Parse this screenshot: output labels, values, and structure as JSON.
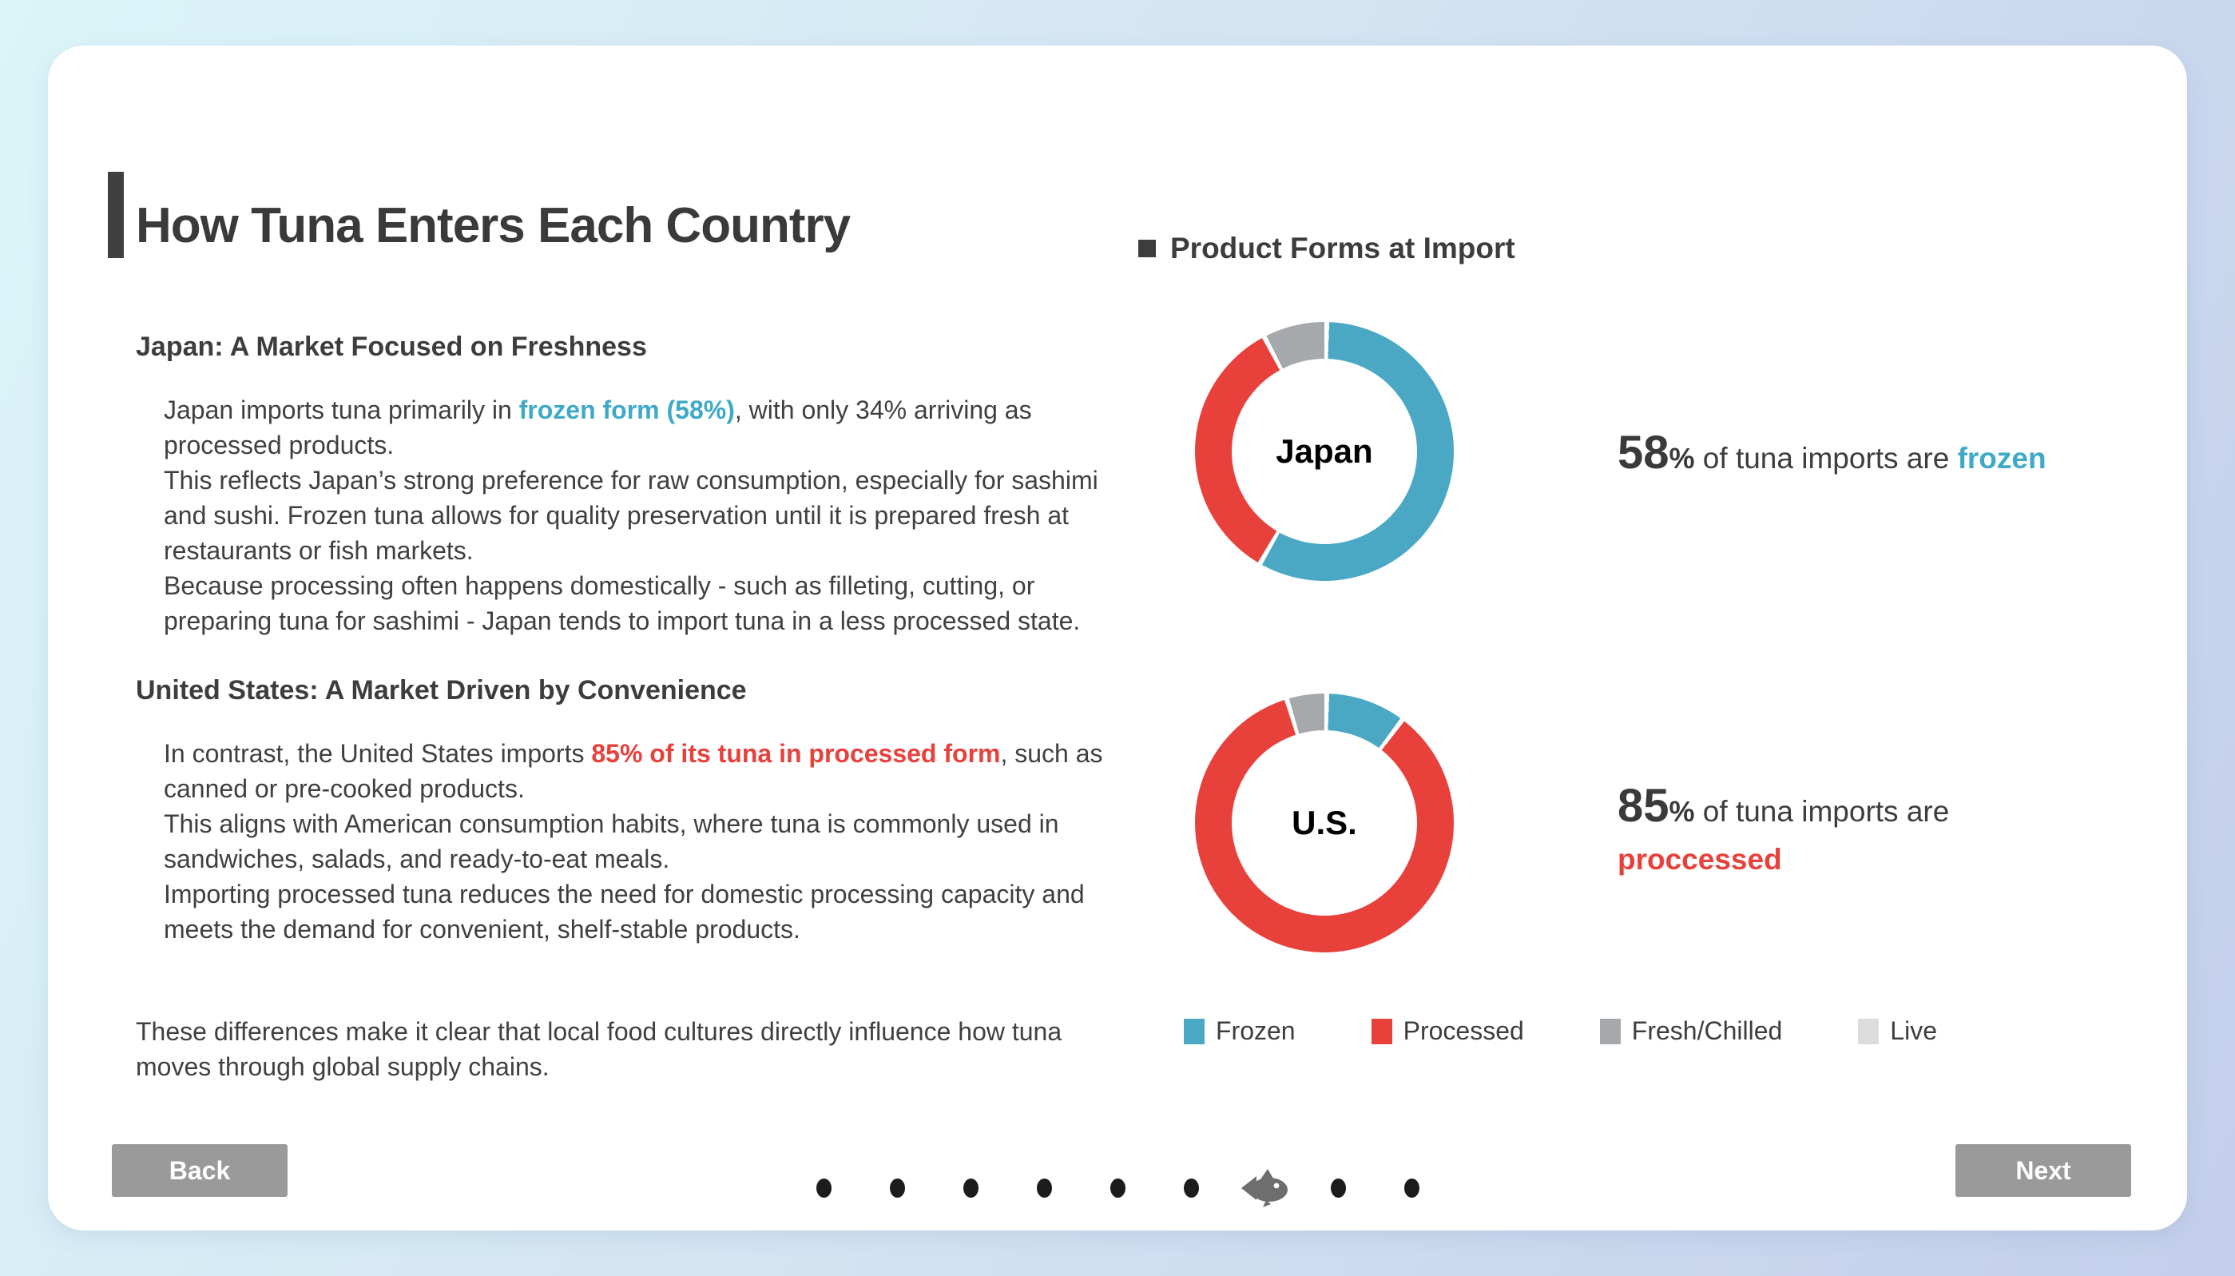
{
  "colors": {
    "teal": "#3fa9c8",
    "red": "#e8413c",
    "gray": "#a6a9ac",
    "light_gray": "#dcdcdc",
    "dark_text": "#3d3d3d",
    "button_gray": "#9a9a9a",
    "dot_black": "#1c1c1c",
    "fish_gray": "#6e6e6e",
    "accent_bar": "#404040"
  },
  "slide": {
    "title": "How Tuna Enters Each Country"
  },
  "left_column": {
    "japan_heading": "Japan: A Market Focused on Freshness",
    "japan_paragraph": {
      "seg1": "Japan imports tuna primarily in ",
      "highlight": "frozen form (58%)",
      "seg2": ", with only 34% arriving as processed products.",
      "line2": "This reflects Japan’s strong preference for raw consumption, especially for sashimi and sushi. Frozen tuna allows for quality preservation until it is prepared fresh at restaurants or fish markets.",
      "line3": "Because processing often happens domestically - such as filleting, cutting, or preparing tuna for sashimi - Japan tends to import tuna in a less processed state."
    },
    "us_heading": "United States: A Market Driven by Convenience",
    "us_paragraph": {
      "seg1": "In contrast, the United States imports ",
      "highlight": "85% of its tuna in processed form",
      "seg2": ", such as canned or pre-cooked products.",
      "line2": "This aligns with American consumption habits, where tuna is commonly used in sandwiches, salads, and ready-to-eat meals.",
      "line3": "Importing processed tuna reduces the need for domestic processing capacity and meets the demand for convenient, shelf-stable products."
    },
    "closing_paragraph": "These differences make it clear that local food cultures directly influence how tuna moves through global supply chains."
  },
  "right_column": {
    "section_heading": "Product Forms at Import",
    "japan_stat": {
      "value": "58",
      "percent_sign": "%",
      "text": " of tuna imports are ",
      "highlight": "frozen"
    },
    "us_stat": {
      "value": "85",
      "percent_sign": "%",
      "text": " of tuna imports are",
      "highlight": "proccessed"
    }
  },
  "chart_data": [
    {
      "type": "pie",
      "variant": "donut",
      "label": "Japan",
      "categories": [
        "Frozen",
        "Processed",
        "Fresh/Chilled",
        "Live"
      ],
      "values": [
        58,
        34,
        8,
        0
      ],
      "colors": [
        "#4ba8c4",
        "#e8413c",
        "#a6a9ac",
        "#dcdcdc"
      ],
      "legend_position": "bottom"
    },
    {
      "type": "pie",
      "variant": "donut",
      "label": "U.S.",
      "categories": [
        "Frozen",
        "Processed",
        "Fresh/Chilled",
        "Live"
      ],
      "values": [
        10,
        85,
        5,
        0
      ],
      "colors": [
        "#4ba8c4",
        "#e8413c",
        "#a6a9ac",
        "#dcdcdc"
      ],
      "legend_position": "bottom"
    }
  ],
  "legend": {
    "items": [
      {
        "label": "Frozen",
        "color": "#4ba8c4"
      },
      {
        "label": "Processed",
        "color": "#e8413c"
      },
      {
        "label": "Fresh/Chilled",
        "color": "#a6a9ac"
      },
      {
        "label": "Live",
        "color": "#dcdcdc"
      }
    ]
  },
  "navigation": {
    "back_label": "Back",
    "next_label": "Next",
    "pagination": {
      "total": 9,
      "current": 7,
      "current_icon": "fish-icon"
    }
  }
}
